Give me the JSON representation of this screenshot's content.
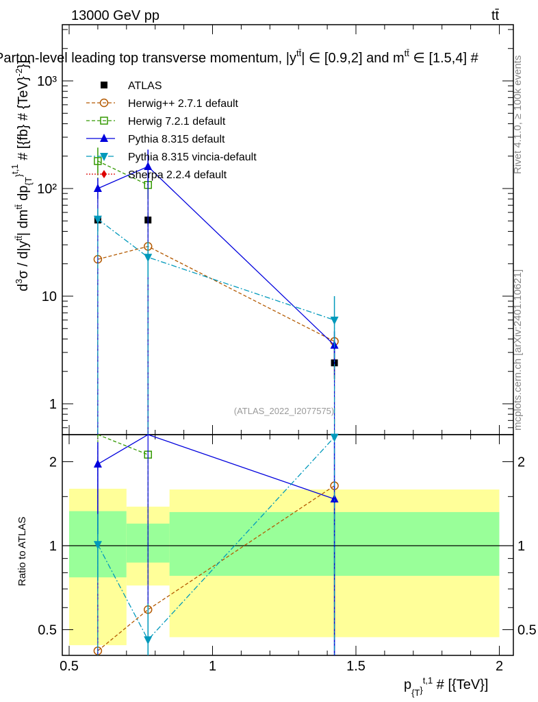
{
  "header": {
    "energy": "13000 GeV pp",
    "process": "tt̄",
    "title": "Parton-level leading top transverse momentum, |y",
    "title_sup1": "tt̄",
    "title_mid": "| ∈ [0.9,2] and m",
    "title_sup2": "tt̄",
    "title_end": " ∈ [1.5,4] #"
  },
  "side_labels": {
    "rivet": "Rivet 4.1.0, ≥ 100k events",
    "mcplots": "mcplots.cern.ch [arXiv:2401.10621]"
  },
  "watermark": "(ATLAS_2022_I2077575)",
  "axes": {
    "ylabel_main": "d³σ / d|y^tt̄| dm^tt̄ dp_{T}^{t,1} # [{fb} # {TeV}^{-2}]",
    "ylabel_ratio": "Ratio to ATLAS",
    "xlabel": "p_{T}^{t,1} # [{TeV}]",
    "x_ticks": [
      "0.5",
      "1",
      "1.5",
      "2"
    ],
    "main_y_ticks": [
      "1",
      "10",
      "10²",
      "10³"
    ],
    "ratio_y_ticks": [
      "0.5",
      "1",
      "2"
    ]
  },
  "colors": {
    "atlas": "#000000",
    "herwigpp": "#b35900",
    "herwig7": "#339900",
    "pythia": "#0000dd",
    "vincia": "#0099bb",
    "sherpa": "#dd0000",
    "band_outer": "#ffff99",
    "band_inner": "#99ff99"
  },
  "chart_data": {
    "type": "line",
    "x_scale": "linear",
    "y_scale": "log",
    "xlim": [
      0.45,
      2.05
    ],
    "ylim": [
      0.6,
      3500
    ],
    "ratio_ylim": [
      0.42,
      2.35
    ],
    "bins": [
      [
        0.5,
        0.7
      ],
      [
        0.7,
        0.85
      ],
      [
        0.85,
        2.0
      ]
    ],
    "series": [
      {
        "name": "ATLAS",
        "key": "atlas",
        "x": [
          0.6,
          0.775,
          1.425
        ],
        "y": [
          51,
          51,
          2.4
        ],
        "yerr": [
          [
            48,
            54
          ],
          [
            46,
            56
          ],
          [
            1.7,
            3.3
          ]
        ]
      },
      {
        "name": "Herwig++ 2.7.1 default",
        "key": "herwigpp",
        "x": [
          0.6,
          0.775,
          1.425
        ],
        "y": [
          22,
          29,
          3.8
        ]
      },
      {
        "name": "Herwig 7.2.1 default",
        "key": "herwig7",
        "x": [
          0.6,
          0.775
        ],
        "y": [
          180,
          108
        ],
        "yerr": [
          [
            140,
            240
          ],
          [
            80,
            145
          ]
        ]
      },
      {
        "name": "Pythia 8.315 default",
        "key": "pythia",
        "x": [
          0.6,
          0.775,
          1.425
        ],
        "y": [
          100,
          160,
          3.5
        ],
        "yerr": [
          [
            80,
            125
          ],
          [
            115,
            230
          ],
          [
            2.5,
            4.7
          ]
        ]
      },
      {
        "name": "Pythia 8.315 vincia-default",
        "key": "vincia",
        "x": [
          0.6,
          0.775,
          1.425
        ],
        "y": [
          52,
          23,
          6
        ],
        "yerr": [
          [
            40,
            65
          ],
          [
            15,
            32
          ],
          [
            3.5,
            10
          ]
        ]
      },
      {
        "name": "Sherpa 2.2.4 default",
        "key": "sherpa",
        "x": [],
        "y": []
      }
    ],
    "ratio": {
      "outer_band": [
        [
          0.44,
          1.6
        ],
        [
          0.72,
          1.38
        ],
        [
          0.47,
          1.59
        ]
      ],
      "inner_band": [
        [
          0.77,
          1.33
        ],
        [
          0.87,
          1.2
        ],
        [
          0.78,
          1.32
        ]
      ],
      "series": [
        {
          "key": "herwigpp",
          "x": [
            0.6,
            0.775,
            1.425
          ],
          "y": [
            0.42,
            0.59,
            1.64
          ]
        },
        {
          "key": "herwig7",
          "x": [
            0.6,
            0.775
          ],
          "y": [
            3.5,
            2.12
          ]
        },
        {
          "key": "pythia",
          "x": [
            0.6,
            0.775,
            1.425
          ],
          "y": [
            1.96,
            3.1,
            1.47
          ],
          "yerr": [
            [
              1.1,
              2.35
            ],
            null,
            [
              0.3,
              2.35
            ]
          ]
        },
        {
          "key": "vincia",
          "x": [
            0.6,
            0.775,
            1.425
          ],
          "y": [
            1.01,
            0.46,
            2.45
          ],
          "yerr": [
            [
              0.75,
              1.3
            ],
            [
              0.3,
              0.62
            ],
            null
          ]
        }
      ]
    }
  }
}
